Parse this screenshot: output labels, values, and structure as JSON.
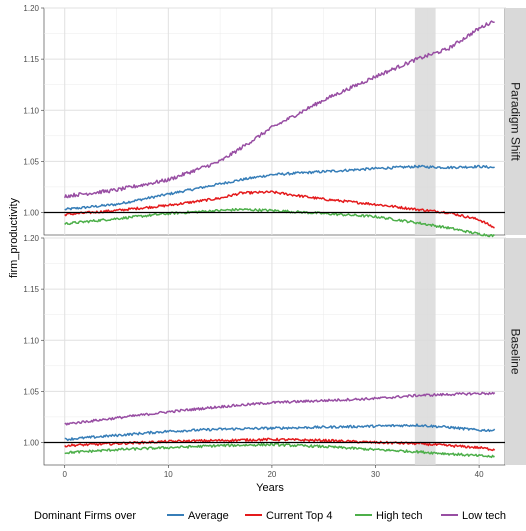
{
  "chart_data": {
    "type": "line",
    "xlabel": "Years",
    "ylabel": "firm_productivity",
    "xlim": [
      -2,
      42.5
    ],
    "ylim": [
      0.978,
      1.2
    ],
    "x_ticks": [
      0,
      10,
      20,
      30,
      40
    ],
    "x_tick_labels": [
      "0",
      "10",
      "20",
      "30",
      "40"
    ],
    "y_ticks": [
      1.0,
      1.05,
      1.1,
      1.15,
      1.2
    ],
    "y_tick_labels": [
      "1.00",
      "1.05",
      "1.10",
      "1.15",
      "1.20"
    ],
    "reference_line_y": 1.0,
    "shaded_band_x": [
      33.8,
      35.8
    ],
    "legend": {
      "title": "Dominant Firms over",
      "placement": "bottom",
      "entries": [
        "Average",
        "Current Top 4",
        "High tech",
        "Low tech"
      ]
    },
    "colors": {
      "Average": "#377eb8",
      "Current Top 4": "#e41a1c",
      "High tech": "#4daf4a",
      "Low tech": "#984ea3",
      "reference": "#000000",
      "band": "#d9d9d9",
      "strip": "#d9d9d9",
      "grid": "#ebebeb"
    },
    "panels": [
      {
        "strip_label": "Paradigm Shift",
        "x": [
          0,
          5,
          10,
          15,
          17,
          20,
          25,
          30,
          34,
          37,
          40,
          41.5
        ],
        "series": [
          {
            "name": "Average",
            "values": [
              1.003,
              1.008,
              1.018,
              1.028,
              1.032,
              1.037,
              1.04,
              1.043,
              1.045,
              1.044,
              1.045,
              1.044
            ]
          },
          {
            "name": "Current Top 4",
            "values": [
              0.998,
              1.002,
              1.007,
              1.014,
              1.019,
              1.02,
              1.013,
              1.008,
              1.003,
              1.0,
              0.993,
              0.985
            ]
          },
          {
            "name": "High tech",
            "values": [
              0.989,
              0.994,
              0.999,
              1.002,
              1.003,
              1.002,
              0.999,
              0.996,
              0.99,
              0.985,
              0.979,
              0.977
            ]
          },
          {
            "name": "Low tech",
            "values": [
              1.016,
              1.022,
              1.032,
              1.05,
              1.063,
              1.083,
              1.11,
              1.133,
              1.15,
              1.16,
              1.18,
              1.188
            ]
          }
        ]
      },
      {
        "strip_label": "Baseline",
        "x": [
          0,
          5,
          10,
          15,
          20,
          25,
          30,
          34,
          37,
          40,
          41.5
        ],
        "series": [
          {
            "name": "Average",
            "values": [
              1.003,
              1.007,
              1.011,
              1.013,
              1.014,
              1.015,
              1.016,
              1.017,
              1.015,
              1.012,
              1.012
            ]
          },
          {
            "name": "Current Top 4",
            "values": [
              0.997,
              0.999,
              1.001,
              1.002,
              1.003,
              1.002,
              1.0,
              0.999,
              0.997,
              0.995,
              0.993
            ]
          },
          {
            "name": "High tech",
            "values": [
              0.99,
              0.993,
              0.995,
              0.997,
              0.998,
              0.996,
              0.993,
              0.991,
              0.989,
              0.987,
              0.986
            ]
          },
          {
            "name": "Low tech",
            "values": [
              1.018,
              1.024,
              1.03,
              1.035,
              1.039,
              1.041,
              1.043,
              1.046,
              1.047,
              1.048,
              1.048
            ]
          }
        ]
      }
    ]
  }
}
